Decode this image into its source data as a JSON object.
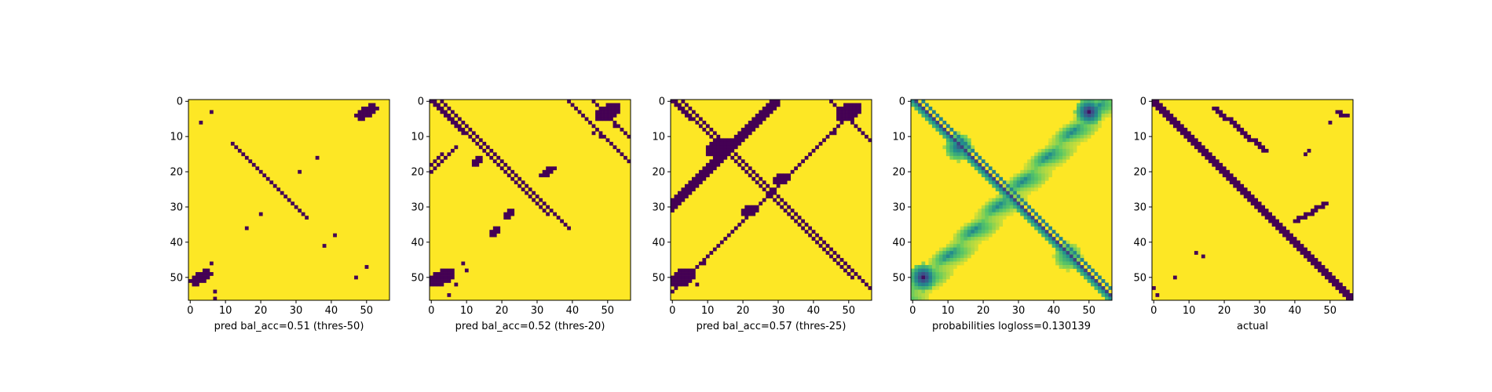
{
  "figure": {
    "colors": {
      "high": "#fde725",
      "low": "#440154",
      "mid": "#21918c",
      "light": "#5ec962",
      "pale": "#b5de2b"
    }
  },
  "chart_data": [
    {
      "type": "heatmap",
      "xlabel": "pred bal_acc=0.51 (thres-50)",
      "size": 57,
      "xticks": [
        0,
        10,
        20,
        30,
        40,
        50
      ],
      "yticks": [
        0,
        10,
        20,
        30,
        40,
        50
      ],
      "colormap": "viridis",
      "values_binary": true,
      "features": {
        "diagonal_dashes": [
          [
            12,
            24
          ],
          [
            14,
            26
          ],
          [
            18,
            30
          ],
          [
            27,
            33
          ]
        ],
        "blobs": [
          [
            50,
            3,
            2.2
          ],
          [
            3,
            50,
            2.2
          ]
        ],
        "dots": [
          [
            6,
            3
          ],
          [
            3,
            6
          ],
          [
            56,
            7
          ],
          [
            16,
            36
          ],
          [
            20,
            31
          ],
          [
            32,
            20
          ],
          [
            36,
            16
          ],
          [
            41,
            38
          ],
          [
            38,
            41
          ],
          [
            47,
            50
          ],
          [
            50,
            47
          ],
          [
            54,
            7
          ],
          [
            46,
            6
          ]
        ]
      }
    },
    {
      "type": "heatmap",
      "xlabel": "pred bal_acc=0.52 (thres-20)",
      "size": 57,
      "xticks": [
        0,
        10,
        20,
        30,
        40,
        50
      ],
      "yticks": [
        0,
        10,
        20,
        30,
        40,
        50
      ],
      "colormap": "viridis",
      "values_binary": true,
      "features": {
        "diagonal_lines": [
          [
            1,
            32
          ],
          [
            3,
            34
          ],
          [
            0,
            10
          ],
          [
            39,
            42
          ],
          [
            46,
            52
          ]
        ],
        "anti_lines": [
          [
            13,
            20,
            34
          ],
          [
            15,
            18,
            40
          ],
          [
            16,
            18,
            27
          ]
        ],
        "blobs": [
          [
            50,
            3,
            2.8
          ],
          [
            3,
            50,
            2.8
          ],
          [
            17,
            13,
            1.2
          ],
          [
            20,
            33,
            1.5
          ],
          [
            32,
            22,
            1.2
          ],
          [
            37,
            18,
            1.2
          ]
        ],
        "dots": [
          [
            46,
            9
          ],
          [
            9,
            46
          ],
          [
            52,
            7
          ],
          [
            7,
            52
          ],
          [
            48,
            10
          ],
          [
            10,
            48
          ],
          [
            55,
            5
          ]
        ]
      }
    },
    {
      "type": "heatmap",
      "xlabel": "pred bal_acc=0.57 (thres-25)",
      "size": 57,
      "xticks": [
        0,
        10,
        20,
        30,
        40,
        50
      ],
      "yticks": [
        0,
        10,
        20,
        30,
        40,
        50
      ],
      "colormap": "viridis",
      "values_binary": true,
      "features": {
        "diagonal_lines": [
          [
            1,
            50
          ],
          [
            3,
            52
          ],
          [
            0,
            6
          ],
          [
            45,
            51
          ]
        ],
        "anti_lines": [
          [
            3,
            54,
            56
          ]
        ],
        "anti_bands": [
          [
            0,
            28,
            58,
            3
          ],
          [
            1,
            30,
            58,
            2
          ]
        ],
        "blobs": [
          [
            13,
            13,
            2.5
          ],
          [
            50,
            3,
            3.0
          ],
          [
            3,
            50,
            3.0
          ],
          [
            22,
            31,
            2.0
          ],
          [
            31,
            22,
            2.0
          ]
        ],
        "dots": [
          [
            46,
            9
          ],
          [
            9,
            46
          ],
          [
            52,
            7
          ],
          [
            7,
            52
          ]
        ]
      }
    },
    {
      "type": "heatmap",
      "xlabel": "probabilities logloss=0.130139",
      "size": 57,
      "xticks": [
        0,
        10,
        20,
        30,
        40,
        50
      ],
      "yticks": [
        0,
        10,
        20,
        30,
        40,
        50
      ],
      "colormap": "viridis",
      "values_binary": false,
      "features": {
        "prob_lines": [
          [
            1,
            0.8
          ],
          [
            3,
            0.55
          ],
          [
            0,
            0.5
          ],
          [
            -1,
            0.35
          ]
        ],
        "prob_bands": [
          [
            56,
            4,
            0.55
          ],
          [
            58,
            5,
            0.35
          ]
        ],
        "hot_spots": [
          [
            3,
            50,
            0.95
          ],
          [
            50,
            3,
            0.95
          ],
          [
            13,
            13,
            0.7
          ],
          [
            44,
            44,
            0.5
          ]
        ]
      }
    },
    {
      "type": "heatmap",
      "xlabel": "actual",
      "size": 57,
      "xticks": [
        0,
        10,
        20,
        30,
        40,
        50
      ],
      "yticks": [
        0,
        10,
        20,
        30,
        40,
        50
      ],
      "colormap": "viridis",
      "values_binary": true,
      "features": {
        "main_band": [
          [
            0,
            1.6
          ]
        ],
        "anti_segments": [
          [
            2,
            17,
            14,
            31
          ],
          [
            29,
            48,
            34,
            40
          ],
          [
            3,
            52,
            4,
            54
          ]
        ],
        "dots": [
          [
            44,
            14
          ],
          [
            14,
            44
          ],
          [
            43,
            12
          ],
          [
            15,
            43
          ],
          [
            6,
            50
          ],
          [
            50,
            6
          ],
          [
            53,
            0
          ],
          [
            55,
            1
          ]
        ]
      }
    }
  ]
}
